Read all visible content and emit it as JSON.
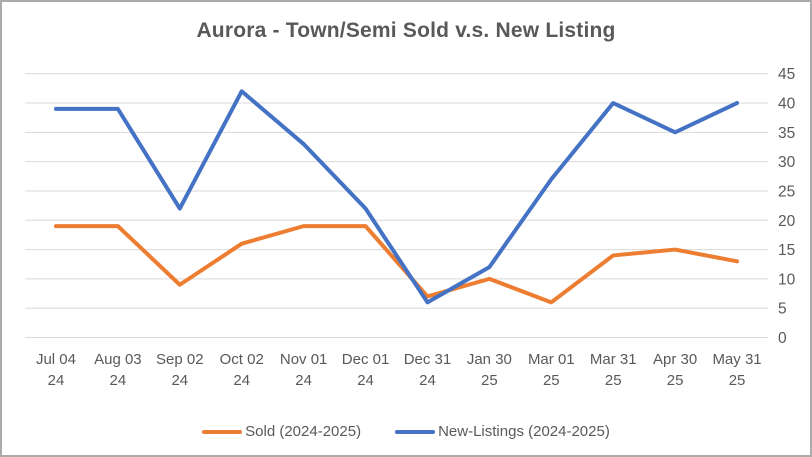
{
  "chart_data": {
    "type": "line",
    "title": "Aurora - Town/Semi Sold v.s. New Listing",
    "categories": [
      [
        "Jul 04",
        "24"
      ],
      [
        "Aug 03",
        "24"
      ],
      [
        "Sep 02",
        "24"
      ],
      [
        "Oct 02",
        "24"
      ],
      [
        "Nov 01",
        "24"
      ],
      [
        "Dec 01",
        "24"
      ],
      [
        "Dec 31",
        "24"
      ],
      [
        "Jan 30",
        "25"
      ],
      [
        "Mar 01",
        "25"
      ],
      [
        "Mar 31",
        "25"
      ],
      [
        "Apr 30",
        "25"
      ],
      [
        "May 31",
        "25"
      ]
    ],
    "series": [
      {
        "name": "Sold (2024-2025)",
        "color": "#ED7D31",
        "values": [
          19,
          19,
          9,
          16,
          19,
          19,
          7,
          10,
          6,
          14,
          15,
          13
        ]
      },
      {
        "name": "New-Listings (2024-2025)",
        "color": "#4472C4",
        "values": [
          39,
          39,
          22,
          42,
          33,
          22,
          6,
          12,
          27,
          40,
          35,
          40
        ]
      }
    ],
    "ylim": [
      0,
      45
    ],
    "ytick_step": 5,
    "yticks": [
      0,
      5,
      10,
      15,
      20,
      25,
      30,
      35,
      40,
      45
    ],
    "y_axis_side": "right",
    "legend_position": "bottom",
    "grid": true,
    "gridline_color": "#D9D9D9",
    "axis_label_color": "#595959",
    "title_color": "#595959"
  }
}
